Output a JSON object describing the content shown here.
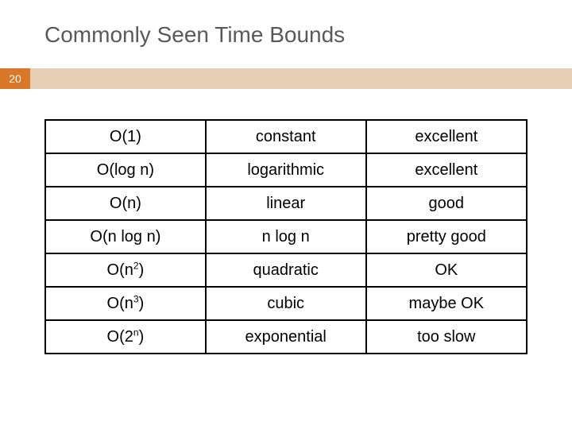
{
  "title": "Commonly Seen Time Bounds",
  "page_number": "20",
  "accent_bar_color": "#e6ceb4",
  "page_badge_bg": "#d97828",
  "page_badge_fg": "#ffffff",
  "title_color": "#595959",
  "title_fontsize": 28,
  "table": {
    "border_color": "#000000",
    "cell_font_color": "#000000",
    "cell_fontsize": 20,
    "column_widths_pct": [
      33.3,
      33.3,
      33.4
    ],
    "rows": [
      {
        "notation_html": "O(1)",
        "name": "constant",
        "rating": "excellent"
      },
      {
        "notation_html": "O(log n)",
        "name": "logarithmic",
        "rating": "excellent"
      },
      {
        "notation_html": "O(n)",
        "name": "linear",
        "rating": "good"
      },
      {
        "notation_html": "O(n log n)",
        "name": "n log n",
        "rating": "pretty good"
      },
      {
        "notation_html": "O(n<sup>2</sup>)",
        "name": "quadratic",
        "rating": "OK"
      },
      {
        "notation_html": "O(n<sup>3</sup>)",
        "name": "cubic",
        "rating": "maybe OK"
      },
      {
        "notation_html": "O(2<sup>n</sup>)",
        "name": "exponential",
        "rating": "too slow"
      }
    ]
  }
}
